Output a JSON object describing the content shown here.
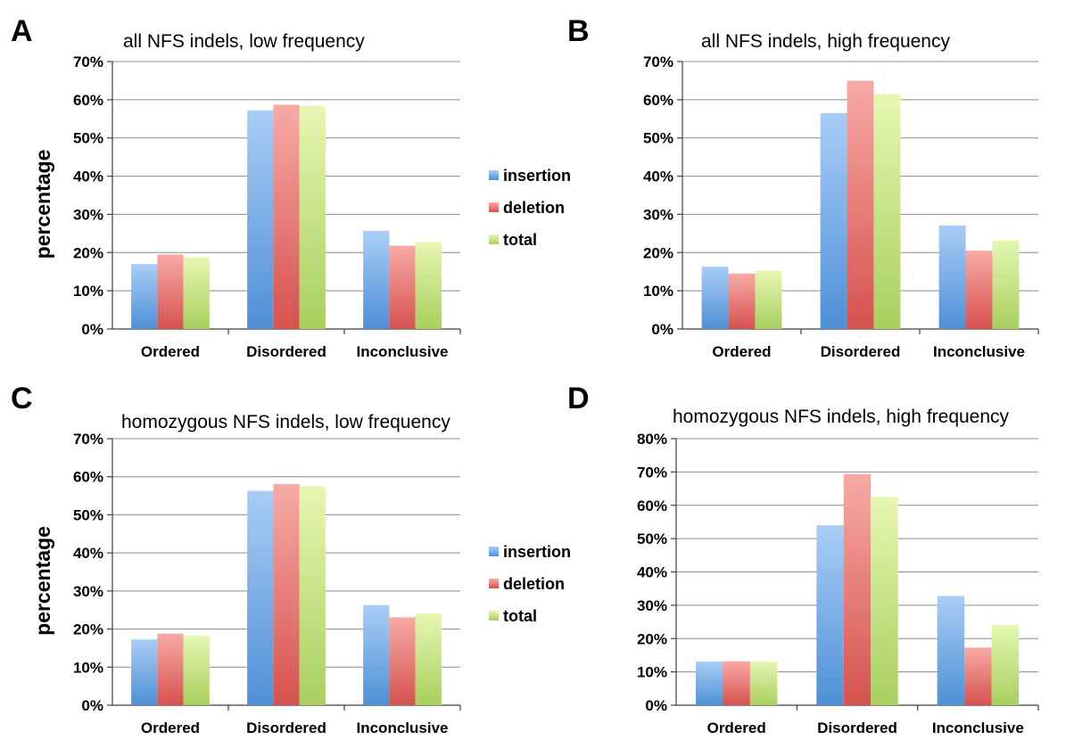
{
  "figure": {
    "legend": {
      "entries": [
        "insertion",
        "deletion",
        "total"
      ]
    }
  },
  "colors": {
    "insertion": [
      "#a9cdf6",
      "#4e90d6"
    ],
    "deletion": [
      "#f7aaa6",
      "#d6524e"
    ],
    "total": [
      "#e6f7b2",
      "#a8cf5e"
    ],
    "grid": "#8c8c8c",
    "axis": "#404040"
  },
  "chart_data": [
    {
      "panel": "A",
      "type": "bar",
      "title": "all NFS indels, low frequency",
      "ylabel": "percentage",
      "ylim": [
        0,
        70
      ],
      "yticks": [
        "0%",
        "10%",
        "20%",
        "30%",
        "40%",
        "50%",
        "60%",
        "70%"
      ],
      "grid": true,
      "legend_position": "right",
      "categories": [
        "Ordered",
        "Disordered",
        "Inconclusive"
      ],
      "series": [
        {
          "name": "insertion",
          "values": [
            17,
            57.2,
            25.7
          ]
        },
        {
          "name": "deletion",
          "values": [
            19.5,
            58.7,
            21.8
          ]
        },
        {
          "name": "total",
          "values": [
            18.8,
            58.3,
            22.8
          ]
        }
      ]
    },
    {
      "panel": "B",
      "type": "bar",
      "title": "all NFS indels, high frequency",
      "ylabel": "",
      "ylim": [
        0,
        70
      ],
      "yticks": [
        "0%",
        "10%",
        "20%",
        "30%",
        "40%",
        "50%",
        "60%",
        "70%"
      ],
      "grid": true,
      "categories": [
        "Ordered",
        "Disordered",
        "Inconclusive"
      ],
      "series": [
        {
          "name": "insertion",
          "values": [
            16.3,
            56.5,
            27.1
          ]
        },
        {
          "name": "deletion",
          "values": [
            14.5,
            65,
            20.5
          ]
        },
        {
          "name": "total",
          "values": [
            15.3,
            61.5,
            23.2
          ]
        }
      ]
    },
    {
      "panel": "C",
      "type": "bar",
      "title": "homozygous NFS indels, low frequency",
      "ylabel": "percentage",
      "ylim": [
        0,
        70
      ],
      "yticks": [
        "0%",
        "10%",
        "20%",
        "30%",
        "40%",
        "50%",
        "60%",
        "70%"
      ],
      "grid": true,
      "legend_position": "right",
      "categories": [
        "Ordered",
        "Disordered",
        "Inconclusive"
      ],
      "series": [
        {
          "name": "insertion",
          "values": [
            17.3,
            56.3,
            26.3
          ]
        },
        {
          "name": "deletion",
          "values": [
            18.8,
            58.1,
            23.1
          ]
        },
        {
          "name": "total",
          "values": [
            18.3,
            57.5,
            24.1
          ]
        }
      ]
    },
    {
      "panel": "D",
      "type": "bar",
      "title": "homozygous NFS indels, high frequency",
      "ylabel": "",
      "ylim": [
        0,
        80
      ],
      "yticks": [
        "0%",
        "10%",
        "20%",
        "30%",
        "40%",
        "50%",
        "60%",
        "70%",
        "80%"
      ],
      "grid": true,
      "categories": [
        "Ordered",
        "Disordered",
        "Inconclusive"
      ],
      "series": [
        {
          "name": "insertion",
          "values": [
            13.1,
            54,
            32.8
          ]
        },
        {
          "name": "deletion",
          "values": [
            13.2,
            69.4,
            17.3
          ]
        },
        {
          "name": "total",
          "values": [
            13.1,
            62.5,
            24.1
          ]
        }
      ]
    }
  ]
}
